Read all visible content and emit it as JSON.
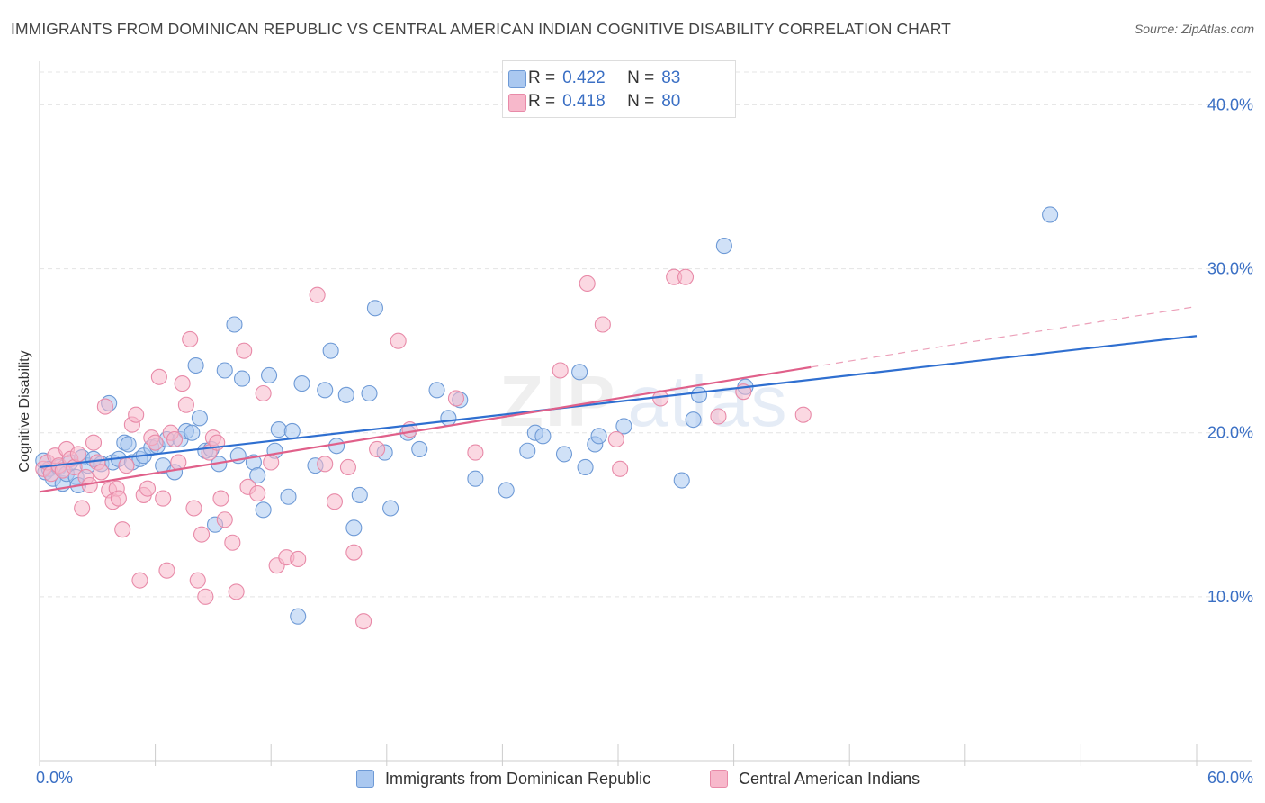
{
  "header": {
    "title": "IMMIGRANTS FROM DOMINICAN REPUBLIC VS CENTRAL AMERICAN INDIAN COGNITIVE DISABILITY CORRELATION CHART",
    "source": "Source: ZipAtlas.com"
  },
  "watermark": {
    "zip": "ZIP",
    "atlas": "atlas"
  },
  "legend": {
    "r_label": "R =",
    "n_label": "N =",
    "rows": [
      {
        "r": "0.422",
        "n": "83"
      },
      {
        "r": "0.418",
        "n": "80"
      }
    ]
  },
  "colors": {
    "blue_fill": "#aac8f0",
    "blue_stroke": "#6e9ad6",
    "blue_line": "#2f6fd0",
    "pink_fill": "#f7b8cb",
    "pink_stroke": "#e88aa8",
    "pink_line": "#e0608a",
    "tick_label": "#3a6fc4",
    "grid": "#e4e4e4"
  },
  "chart_data": {
    "type": "scatter",
    "xlabel": "",
    "ylabel": "Cognitive Disability",
    "xlim": [
      0,
      60
    ],
    "ylim": [
      0,
      42
    ],
    "x_tick_labels": [
      {
        "value": 0,
        "label": "0.0%"
      },
      {
        "value": 60,
        "label": "60.0%"
      }
    ],
    "y_tick_labels": [
      {
        "value": 10,
        "label": "10.0%"
      },
      {
        "value": 20,
        "label": "20.0%"
      },
      {
        "value": 30,
        "label": "30.0%"
      },
      {
        "value": 40,
        "label": "40.0%"
      }
    ],
    "grid": true,
    "legend_position": "top-center",
    "series": [
      {
        "name": "Immigrants from Dominican Republic",
        "color": "#aac8f0",
        "trend": {
          "x": [
            0,
            60
          ],
          "y": [
            17.9,
            25.9
          ]
        },
        "points": [
          [
            0.2,
            18.3
          ],
          [
            0.3,
            17.6
          ],
          [
            0.5,
            17.8
          ],
          [
            0.7,
            17.2
          ],
          [
            1.0,
            17.9
          ],
          [
            1.2,
            16.9
          ],
          [
            1.4,
            17.5
          ],
          [
            1.6,
            18.2
          ],
          [
            1.9,
            17.3
          ],
          [
            2.0,
            16.8
          ],
          [
            2.2,
            18.5
          ],
          [
            2.5,
            18.0
          ],
          [
            2.8,
            18.4
          ],
          [
            3.2,
            18.1
          ],
          [
            3.6,
            21.8
          ],
          [
            3.8,
            18.2
          ],
          [
            4.1,
            18.4
          ],
          [
            4.4,
            19.4
          ],
          [
            4.6,
            19.3
          ],
          [
            4.8,
            18.2
          ],
          [
            5.2,
            18.4
          ],
          [
            5.4,
            18.6
          ],
          [
            5.8,
            19.1
          ],
          [
            6.1,
            19.2
          ],
          [
            6.4,
            18.0
          ],
          [
            6.6,
            19.6
          ],
          [
            7.0,
            17.6
          ],
          [
            7.3,
            19.6
          ],
          [
            7.6,
            20.1
          ],
          [
            7.9,
            20.0
          ],
          [
            8.1,
            24.1
          ],
          [
            8.3,
            20.9
          ],
          [
            8.6,
            18.9
          ],
          [
            8.9,
            19.0
          ],
          [
            9.1,
            14.4
          ],
          [
            9.3,
            18.1
          ],
          [
            9.6,
            23.8
          ],
          [
            10.1,
            26.6
          ],
          [
            10.3,
            18.6
          ],
          [
            10.5,
            23.3
          ],
          [
            11.1,
            18.2
          ],
          [
            11.3,
            17.4
          ],
          [
            11.6,
            15.3
          ],
          [
            11.9,
            23.5
          ],
          [
            12.2,
            18.9
          ],
          [
            12.4,
            20.2
          ],
          [
            12.9,
            16.1
          ],
          [
            13.1,
            20.1
          ],
          [
            13.4,
            8.8
          ],
          [
            13.6,
            23.0
          ],
          [
            14.3,
            18.0
          ],
          [
            14.8,
            22.6
          ],
          [
            15.1,
            25.0
          ],
          [
            15.4,
            19.2
          ],
          [
            15.9,
            22.3
          ],
          [
            16.3,
            14.2
          ],
          [
            16.6,
            16.2
          ],
          [
            17.1,
            22.4
          ],
          [
            17.4,
            27.6
          ],
          [
            17.9,
            18.8
          ],
          [
            18.2,
            15.4
          ],
          [
            19.1,
            20.0
          ],
          [
            19.7,
            19.0
          ],
          [
            20.6,
            22.6
          ],
          [
            21.2,
            20.9
          ],
          [
            21.8,
            22.0
          ],
          [
            22.6,
            17.2
          ],
          [
            24.2,
            16.5
          ],
          [
            25.3,
            18.9
          ],
          [
            25.7,
            20.0
          ],
          [
            26.1,
            19.8
          ],
          [
            27.2,
            18.7
          ],
          [
            28.0,
            23.7
          ],
          [
            28.3,
            17.9
          ],
          [
            28.8,
            19.3
          ],
          [
            29.0,
            19.8
          ],
          [
            30.3,
            20.4
          ],
          [
            33.3,
            17.1
          ],
          [
            33.9,
            20.8
          ],
          [
            34.2,
            22.3
          ],
          [
            35.5,
            31.4
          ],
          [
            36.6,
            22.8
          ],
          [
            52.4,
            33.3
          ]
        ]
      },
      {
        "name": "Central American Indians",
        "color": "#f7b8cb",
        "trend": {
          "x": [
            0,
            40
          ],
          "y": [
            16.4,
            24.0
          ]
        },
        "trend_dashed": {
          "x": [
            40,
            60
          ],
          "y": [
            24.0,
            27.7
          ]
        },
        "points": [
          [
            0.2,
            17.8
          ],
          [
            0.4,
            18.2
          ],
          [
            0.6,
            17.5
          ],
          [
            0.8,
            18.6
          ],
          [
            1.0,
            18.0
          ],
          [
            1.2,
            17.7
          ],
          [
            1.4,
            19.0
          ],
          [
            1.6,
            18.4
          ],
          [
            1.8,
            17.9
          ],
          [
            2.0,
            18.7
          ],
          [
            2.2,
            15.4
          ],
          [
            2.4,
            17.3
          ],
          [
            2.6,
            16.8
          ],
          [
            2.8,
            19.4
          ],
          [
            3.0,
            18.2
          ],
          [
            3.2,
            17.6
          ],
          [
            3.4,
            21.6
          ],
          [
            3.6,
            16.5
          ],
          [
            3.8,
            15.8
          ],
          [
            4.0,
            16.6
          ],
          [
            4.1,
            16.0
          ],
          [
            4.3,
            14.1
          ],
          [
            4.5,
            18.0
          ],
          [
            4.8,
            20.5
          ],
          [
            5.0,
            21.1
          ],
          [
            5.2,
            11.0
          ],
          [
            5.4,
            16.2
          ],
          [
            5.6,
            16.6
          ],
          [
            5.8,
            19.7
          ],
          [
            6.0,
            19.4
          ],
          [
            6.2,
            23.4
          ],
          [
            6.4,
            16.0
          ],
          [
            6.6,
            11.6
          ],
          [
            6.8,
            20.0
          ],
          [
            7.0,
            19.6
          ],
          [
            7.2,
            18.2
          ],
          [
            7.4,
            23.0
          ],
          [
            7.6,
            21.7
          ],
          [
            7.8,
            25.7
          ],
          [
            8.0,
            15.4
          ],
          [
            8.2,
            11.0
          ],
          [
            8.4,
            13.8
          ],
          [
            8.6,
            10.0
          ],
          [
            8.8,
            18.8
          ],
          [
            9.0,
            19.7
          ],
          [
            9.2,
            19.4
          ],
          [
            9.4,
            16.0
          ],
          [
            9.6,
            14.7
          ],
          [
            10.0,
            13.3
          ],
          [
            10.2,
            10.3
          ],
          [
            10.6,
            25.0
          ],
          [
            10.8,
            16.7
          ],
          [
            11.3,
            16.3
          ],
          [
            11.6,
            22.4
          ],
          [
            12.0,
            18.2
          ],
          [
            12.3,
            11.9
          ],
          [
            12.8,
            12.4
          ],
          [
            13.4,
            12.3
          ],
          [
            14.4,
            28.4
          ],
          [
            14.8,
            18.1
          ],
          [
            15.3,
            15.8
          ],
          [
            16.0,
            17.9
          ],
          [
            16.3,
            12.7
          ],
          [
            16.8,
            8.5
          ],
          [
            17.5,
            19.0
          ],
          [
            18.6,
            25.6
          ],
          [
            19.2,
            20.2
          ],
          [
            21.6,
            22.1
          ],
          [
            22.6,
            18.8
          ],
          [
            27.0,
            23.8
          ],
          [
            28.4,
            29.1
          ],
          [
            29.2,
            26.6
          ],
          [
            29.9,
            19.6
          ],
          [
            30.1,
            17.8
          ],
          [
            32.2,
            22.1
          ],
          [
            32.9,
            29.5
          ],
          [
            33.5,
            29.5
          ],
          [
            35.2,
            21.0
          ],
          [
            36.5,
            22.5
          ],
          [
            39.6,
            21.1
          ]
        ]
      }
    ]
  }
}
